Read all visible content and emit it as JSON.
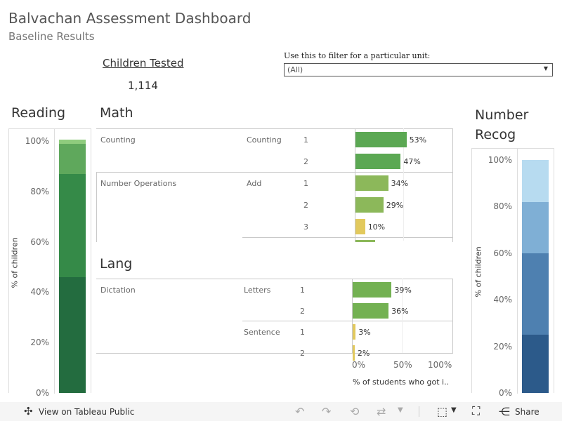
{
  "dashboard": {
    "title": "Balvachan Assessment Dashboard",
    "subtitle": "Baseline Results"
  },
  "kpi": {
    "label": "Children Tested",
    "value": "1,114"
  },
  "filter": {
    "label": "Use this to filter for a particular unit:",
    "value": "(All)"
  },
  "reading": {
    "title": "Reading",
    "axis_label": "% of children",
    "ticks": [
      "100%",
      "80%",
      "60%",
      "40%",
      "20%",
      "0%"
    ],
    "segments": [
      {
        "pct": 46,
        "color": "#236c3f"
      },
      {
        "pct": 41,
        "color": "#358a48"
      },
      {
        "pct": 12,
        "color": "#5fa85c"
      },
      {
        "pct": 1.5,
        "color": "#8fcc7d"
      }
    ]
  },
  "math": {
    "title": "Math",
    "groups": [
      {
        "category": "Counting",
        "subs": [
          {
            "name": "Counting",
            "rows": [
              {
                "level": "1",
                "value": 53,
                "label": "53%",
                "color": "#5ba853"
              },
              {
                "level": "2",
                "value": 47,
                "label": "47%",
                "color": "#5ba853"
              }
            ]
          }
        ]
      },
      {
        "category": "Number Operations",
        "subs": [
          {
            "name": "Add",
            "rows": [
              {
                "level": "1",
                "value": 34,
                "label": "34%",
                "color": "#8cb85a"
              },
              {
                "level": "2",
                "value": 29,
                "label": "29%",
                "color": "#8cb85a"
              },
              {
                "level": "3",
                "value": 10,
                "label": "10%",
                "color": "#e2c95d"
              }
            ]
          }
        ]
      }
    ]
  },
  "lang": {
    "title": "Lang",
    "groups": [
      {
        "category": "Dictation",
        "subs": [
          {
            "name": "Letters",
            "rows": [
              {
                "level": "1",
                "value": 39,
                "label": "39%",
                "color": "#73b152"
              },
              {
                "level": "2",
                "value": 36,
                "label": "36%",
                "color": "#73b152"
              }
            ]
          },
          {
            "name": "Sentence",
            "rows": [
              {
                "level": "1",
                "value": 3,
                "label": "3%",
                "color": "#e2c95d"
              },
              {
                "level": "2",
                "value": 2,
                "label": "2%",
                "color": "#e2c95d"
              }
            ]
          }
        ]
      }
    ],
    "axis_ticks": [
      "0%",
      "50%",
      "100%"
    ],
    "axis_title": "% of students who got i.."
  },
  "number_recog": {
    "title": "Number Recog",
    "axis_label": "% of children",
    "ticks": [
      "100%",
      "80%",
      "60%",
      "40%",
      "20%",
      "0%"
    ],
    "segments": [
      {
        "pct": 25,
        "color": "#2c5a8a"
      },
      {
        "pct": 35,
        "color": "#4e80b0"
      },
      {
        "pct": 22,
        "color": "#7fafd5"
      },
      {
        "pct": 18,
        "color": "#b7dbf0"
      }
    ]
  },
  "footer": {
    "view_label": "View on Tableau Public",
    "share_label": "Share"
  },
  "chart_data": [
    {
      "type": "bar",
      "title": "Reading",
      "ylabel": "% of children",
      "ylim": [
        0,
        100
      ],
      "categories": [
        "Reading"
      ],
      "series": [
        {
          "name": "segment-1",
          "values": [
            46
          ]
        },
        {
          "name": "segment-2",
          "values": [
            41
          ]
        },
        {
          "name": "segment-3",
          "values": [
            12
          ]
        },
        {
          "name": "segment-4",
          "values": [
            1.5
          ]
        }
      ]
    },
    {
      "type": "bar",
      "title": "Math",
      "xlabel": "% of students who got i..",
      "xlim": [
        0,
        100
      ],
      "categories": [
        "Counting-1",
        "Counting-2",
        "Add-1",
        "Add-2",
        "Add-3"
      ],
      "values": [
        53,
        47,
        34,
        29,
        10
      ]
    },
    {
      "type": "bar",
      "title": "Lang",
      "xlabel": "% of students who got i..",
      "xlim": [
        0,
        100
      ],
      "categories": [
        "Letters-1",
        "Letters-2",
        "Sentence-1",
        "Sentence-2"
      ],
      "values": [
        39,
        36,
        3,
        2
      ]
    },
    {
      "type": "bar",
      "title": "Number Recog",
      "ylabel": "% of children",
      "ylim": [
        0,
        100
      ],
      "categories": [
        "Number Recog"
      ],
      "series": [
        {
          "name": "segment-1",
          "values": [
            25
          ]
        },
        {
          "name": "segment-2",
          "values": [
            35
          ]
        },
        {
          "name": "segment-3",
          "values": [
            22
          ]
        },
        {
          "name": "segment-4",
          "values": [
            18
          ]
        }
      ]
    }
  ]
}
